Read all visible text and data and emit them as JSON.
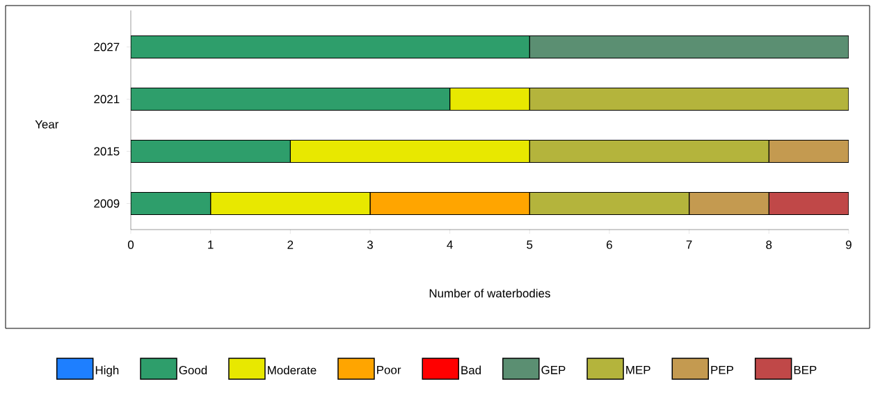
{
  "chart_data": {
    "type": "bar",
    "orientation": "horizontal",
    "stacked": true,
    "xlabel": "Number of waterbodies",
    "ylabel": "Year",
    "categories": [
      "2027",
      "2021",
      "2015",
      "2009"
    ],
    "series": [
      {
        "name": "High",
        "color": "#1e7fff",
        "values": [
          0,
          0,
          0,
          0
        ]
      },
      {
        "name": "Good",
        "color": "#2e9e6b",
        "values": [
          5,
          4,
          2,
          1
        ]
      },
      {
        "name": "Moderate",
        "color": "#e8e800",
        "values": [
          0,
          1,
          3,
          2
        ]
      },
      {
        "name": "Poor",
        "color": "#ffa500",
        "values": [
          0,
          0,
          0,
          2
        ]
      },
      {
        "name": "Bad",
        "color": "#ff0000",
        "values": [
          0,
          0,
          0,
          0
        ]
      },
      {
        "name": "GEP",
        "color": "#5b8f72",
        "values": [
          4,
          0,
          0,
          0
        ]
      },
      {
        "name": "MEP",
        "color": "#b4b43c",
        "values": [
          0,
          4,
          3,
          2
        ]
      },
      {
        "name": "PEP",
        "color": "#c49a50",
        "values": [
          0,
          0,
          1,
          1
        ]
      },
      {
        "name": "BEP",
        "color": "#c04848",
        "values": [
          0,
          0,
          0,
          1
        ]
      }
    ],
    "xlim": [
      0,
      9
    ],
    "xticks": [
      0,
      1,
      2,
      3,
      4,
      5,
      6,
      7,
      8,
      9
    ],
    "legend": "bottom"
  }
}
